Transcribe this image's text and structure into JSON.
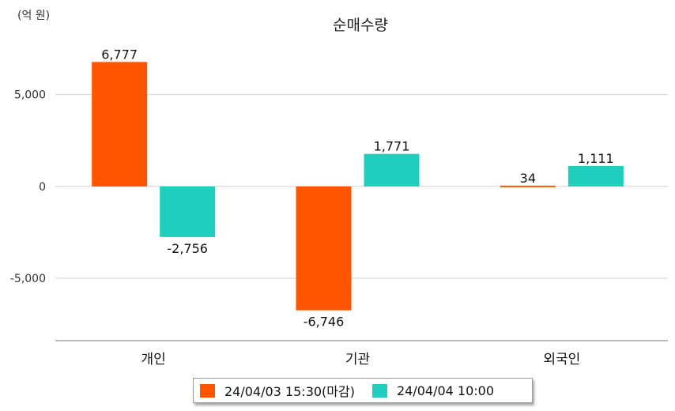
{
  "chart_data": {
    "type": "bar",
    "title": "순매수량",
    "unit_label": "(억 원)",
    "categories": [
      "개인",
      "기관",
      "외국인"
    ],
    "series": [
      {
        "name": "24/04/03 15:30(마감)",
        "color": "#ff5500",
        "values": [
          6777,
          -6746,
          34
        ],
        "labels": [
          "6,777",
          "-6,746",
          "34"
        ]
      },
      {
        "name": "24/04/04 10:00",
        "color": "#1fcebd",
        "values": [
          -2756,
          1771,
          1111
        ],
        "labels": [
          "-2,756",
          "1,771",
          "1,111"
        ]
      }
    ],
    "yticks": [
      5000,
      0,
      -5000
    ],
    "ytick_labels": [
      "5,000",
      "0",
      "-5,000"
    ],
    "ylim": [
      -8400,
      8000
    ],
    "grid": true,
    "legend_position": "bottom"
  }
}
